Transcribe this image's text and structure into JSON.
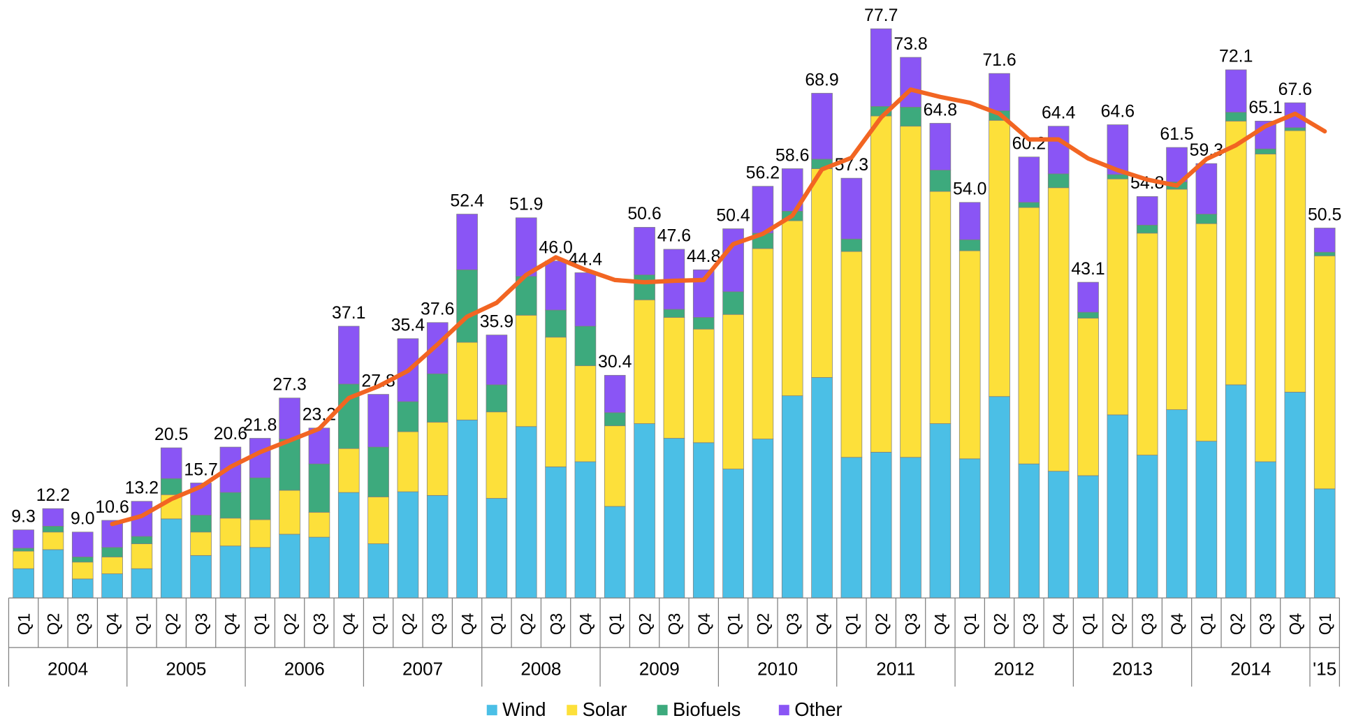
{
  "chart_data": {
    "type": "bar",
    "stacked": true,
    "categories": [
      "Q1",
      "Q2",
      "Q3",
      "Q4",
      "Q1",
      "Q2",
      "Q3",
      "Q4",
      "Q1",
      "Q2",
      "Q3",
      "Q4",
      "Q1",
      "Q2",
      "Q3",
      "Q4",
      "Q1",
      "Q2",
      "Q3",
      "Q4",
      "Q1",
      "Q2",
      "Q3",
      "Q4",
      "Q1",
      "Q2",
      "Q3",
      "Q4",
      "Q1",
      "Q2",
      "Q3",
      "Q4",
      "Q1",
      "Q2",
      "Q3",
      "Q4",
      "Q1",
      "Q2",
      "Q3",
      "Q4",
      "Q1",
      "Q2",
      "Q3",
      "Q4",
      "Q1"
    ],
    "years": [
      "2004",
      null,
      null,
      null,
      "2005",
      null,
      null,
      null,
      "2006",
      null,
      null,
      null,
      "2007",
      null,
      null,
      null,
      "2008",
      null,
      null,
      null,
      "2009",
      null,
      null,
      null,
      "2010",
      null,
      null,
      null,
      "2011",
      null,
      null,
      null,
      "2012",
      null,
      null,
      null,
      "2013",
      null,
      null,
      null,
      "2014",
      null,
      null,
      null,
      "'15"
    ],
    "ylim": [
      0,
      80
    ],
    "legend": "bottom",
    "series": [
      {
        "name": "Wind",
        "color": "#4bbfe6",
        "values": [
          4.0,
          6.6,
          2.6,
          3.3,
          4.0,
          10.8,
          5.8,
          7.1,
          6.9,
          8.7,
          8.3,
          14.4,
          7.4,
          14.5,
          14.0,
          24.3,
          13.6,
          23.4,
          17.9,
          18.6,
          12.5,
          23.8,
          21.8,
          21.2,
          17.6,
          21.7,
          27.6,
          30.1,
          19.2,
          19.9,
          19.2,
          23.8,
          19.0,
          27.5,
          18.3,
          17.3,
          16.7,
          25.0,
          19.5,
          25.7,
          21.4,
          29.1,
          18.6,
          28.1,
          14.9
        ]
      },
      {
        "name": "Solar",
        "color": "#fde03a",
        "values": [
          2.4,
          2.4,
          2.3,
          2.3,
          3.4,
          3.3,
          3.2,
          3.8,
          3.8,
          6.0,
          3.4,
          6.0,
          6.4,
          8.2,
          10.0,
          10.6,
          11.8,
          15.2,
          17.7,
          13.1,
          11.0,
          16.9,
          16.5,
          15.5,
          21.1,
          26.0,
          23.9,
          28.5,
          28.1,
          45.9,
          45.2,
          31.7,
          28.4,
          37.7,
          35.0,
          38.7,
          21.5,
          32.2,
          30.3,
          30.1,
          29.7,
          36.0,
          42.0,
          35.7,
          31.8
        ]
      },
      {
        "name": "Biofuels",
        "color": "#3daa7d",
        "values": [
          0.4,
          0.8,
          0.7,
          1.3,
          1.0,
          2.2,
          2.3,
          3.5,
          5.7,
          7.0,
          6.6,
          8.8,
          6.8,
          4.1,
          6.6,
          9.9,
          3.7,
          5.3,
          3.7,
          5.4,
          1.8,
          3.4,
          1.1,
          1.6,
          3.1,
          2.1,
          1.3,
          1.3,
          1.7,
          1.3,
          2.6,
          2.9,
          1.5,
          1.3,
          0.7,
          1.9,
          0.8,
          0.6,
          1.1,
          1.0,
          1.3,
          1.2,
          0.7,
          0.4,
          0.5
        ]
      },
      {
        "name": "Other",
        "color": "#8a55f5",
        "values": [
          2.5,
          2.4,
          3.4,
          3.7,
          4.8,
          4.2,
          4.4,
          6.2,
          5.4,
          5.6,
          4.9,
          7.9,
          7.2,
          8.6,
          7.0,
          7.6,
          6.8,
          8.0,
          6.7,
          7.3,
          5.1,
          6.5,
          8.2,
          6.5,
          8.6,
          6.4,
          5.8,
          9.0,
          8.3,
          10.6,
          6.8,
          6.4,
          5.1,
          5.1,
          6.2,
          6.5,
          4.1,
          6.8,
          3.9,
          4.7,
          6.9,
          5.8,
          3.8,
          3.4,
          3.3
        ]
      }
    ],
    "totals": [
      9.3,
      12.2,
      9.0,
      10.6,
      13.2,
      20.5,
      15.7,
      20.6,
      21.8,
      27.3,
      23.2,
      37.1,
      27.8,
      35.4,
      37.6,
      52.4,
      35.9,
      51.9,
      46.0,
      44.4,
      30.4,
      50.6,
      47.6,
      44.8,
      50.4,
      56.2,
      58.6,
      68.9,
      57.3,
      77.7,
      73.8,
      64.8,
      54.0,
      71.6,
      60.2,
      64.4,
      43.1,
      64.6,
      54.8,
      61.5,
      59.3,
      72.1,
      65.1,
      67.6,
      50.5
    ],
    "total_labels": [
      "9.3",
      "12.2",
      "9.0",
      "10.6",
      "13.2",
      "20.5",
      "15.7",
      "20.6",
      "21.8",
      "27.3",
      "23.2",
      "37.1",
      "27.8",
      "35.4",
      "37.6",
      "52.4",
      "35.9",
      "51.9",
      "46.0",
      "44.4",
      "30.4",
      "50.6",
      "47.6",
      "44.8",
      "50.4",
      "56.2",
      "58.6",
      "68.9",
      "57.3",
      "77.7",
      "73.8",
      "64.8",
      "54.0",
      "71.6",
      "60.2",
      "64.4",
      "43.1",
      "64.6",
      "54.8",
      "61.5",
      "59.3",
      "72.1",
      "65.1",
      "67.6",
      "50.5"
    ],
    "line": {
      "color": "#f26522",
      "values": [
        null,
        null,
        null,
        10.1,
        11.2,
        13.5,
        15.2,
        17.9,
        19.9,
        21.5,
        23.1,
        27.3,
        28.9,
        31.0,
        34.6,
        38.4,
        40.3,
        44.1,
        46.5,
        44.8,
        43.4,
        43.1,
        43.3,
        43.4,
        48.3,
        49.7,
        52.2,
        58.5,
        60.1,
        65.6,
        69.4,
        68.4,
        67.6,
        66.1,
        62.6,
        62.6,
        60.0,
        58.4,
        57.1,
        56.3,
        59.9,
        61.8,
        64.4,
        66.1,
        63.7
      ]
    }
  }
}
